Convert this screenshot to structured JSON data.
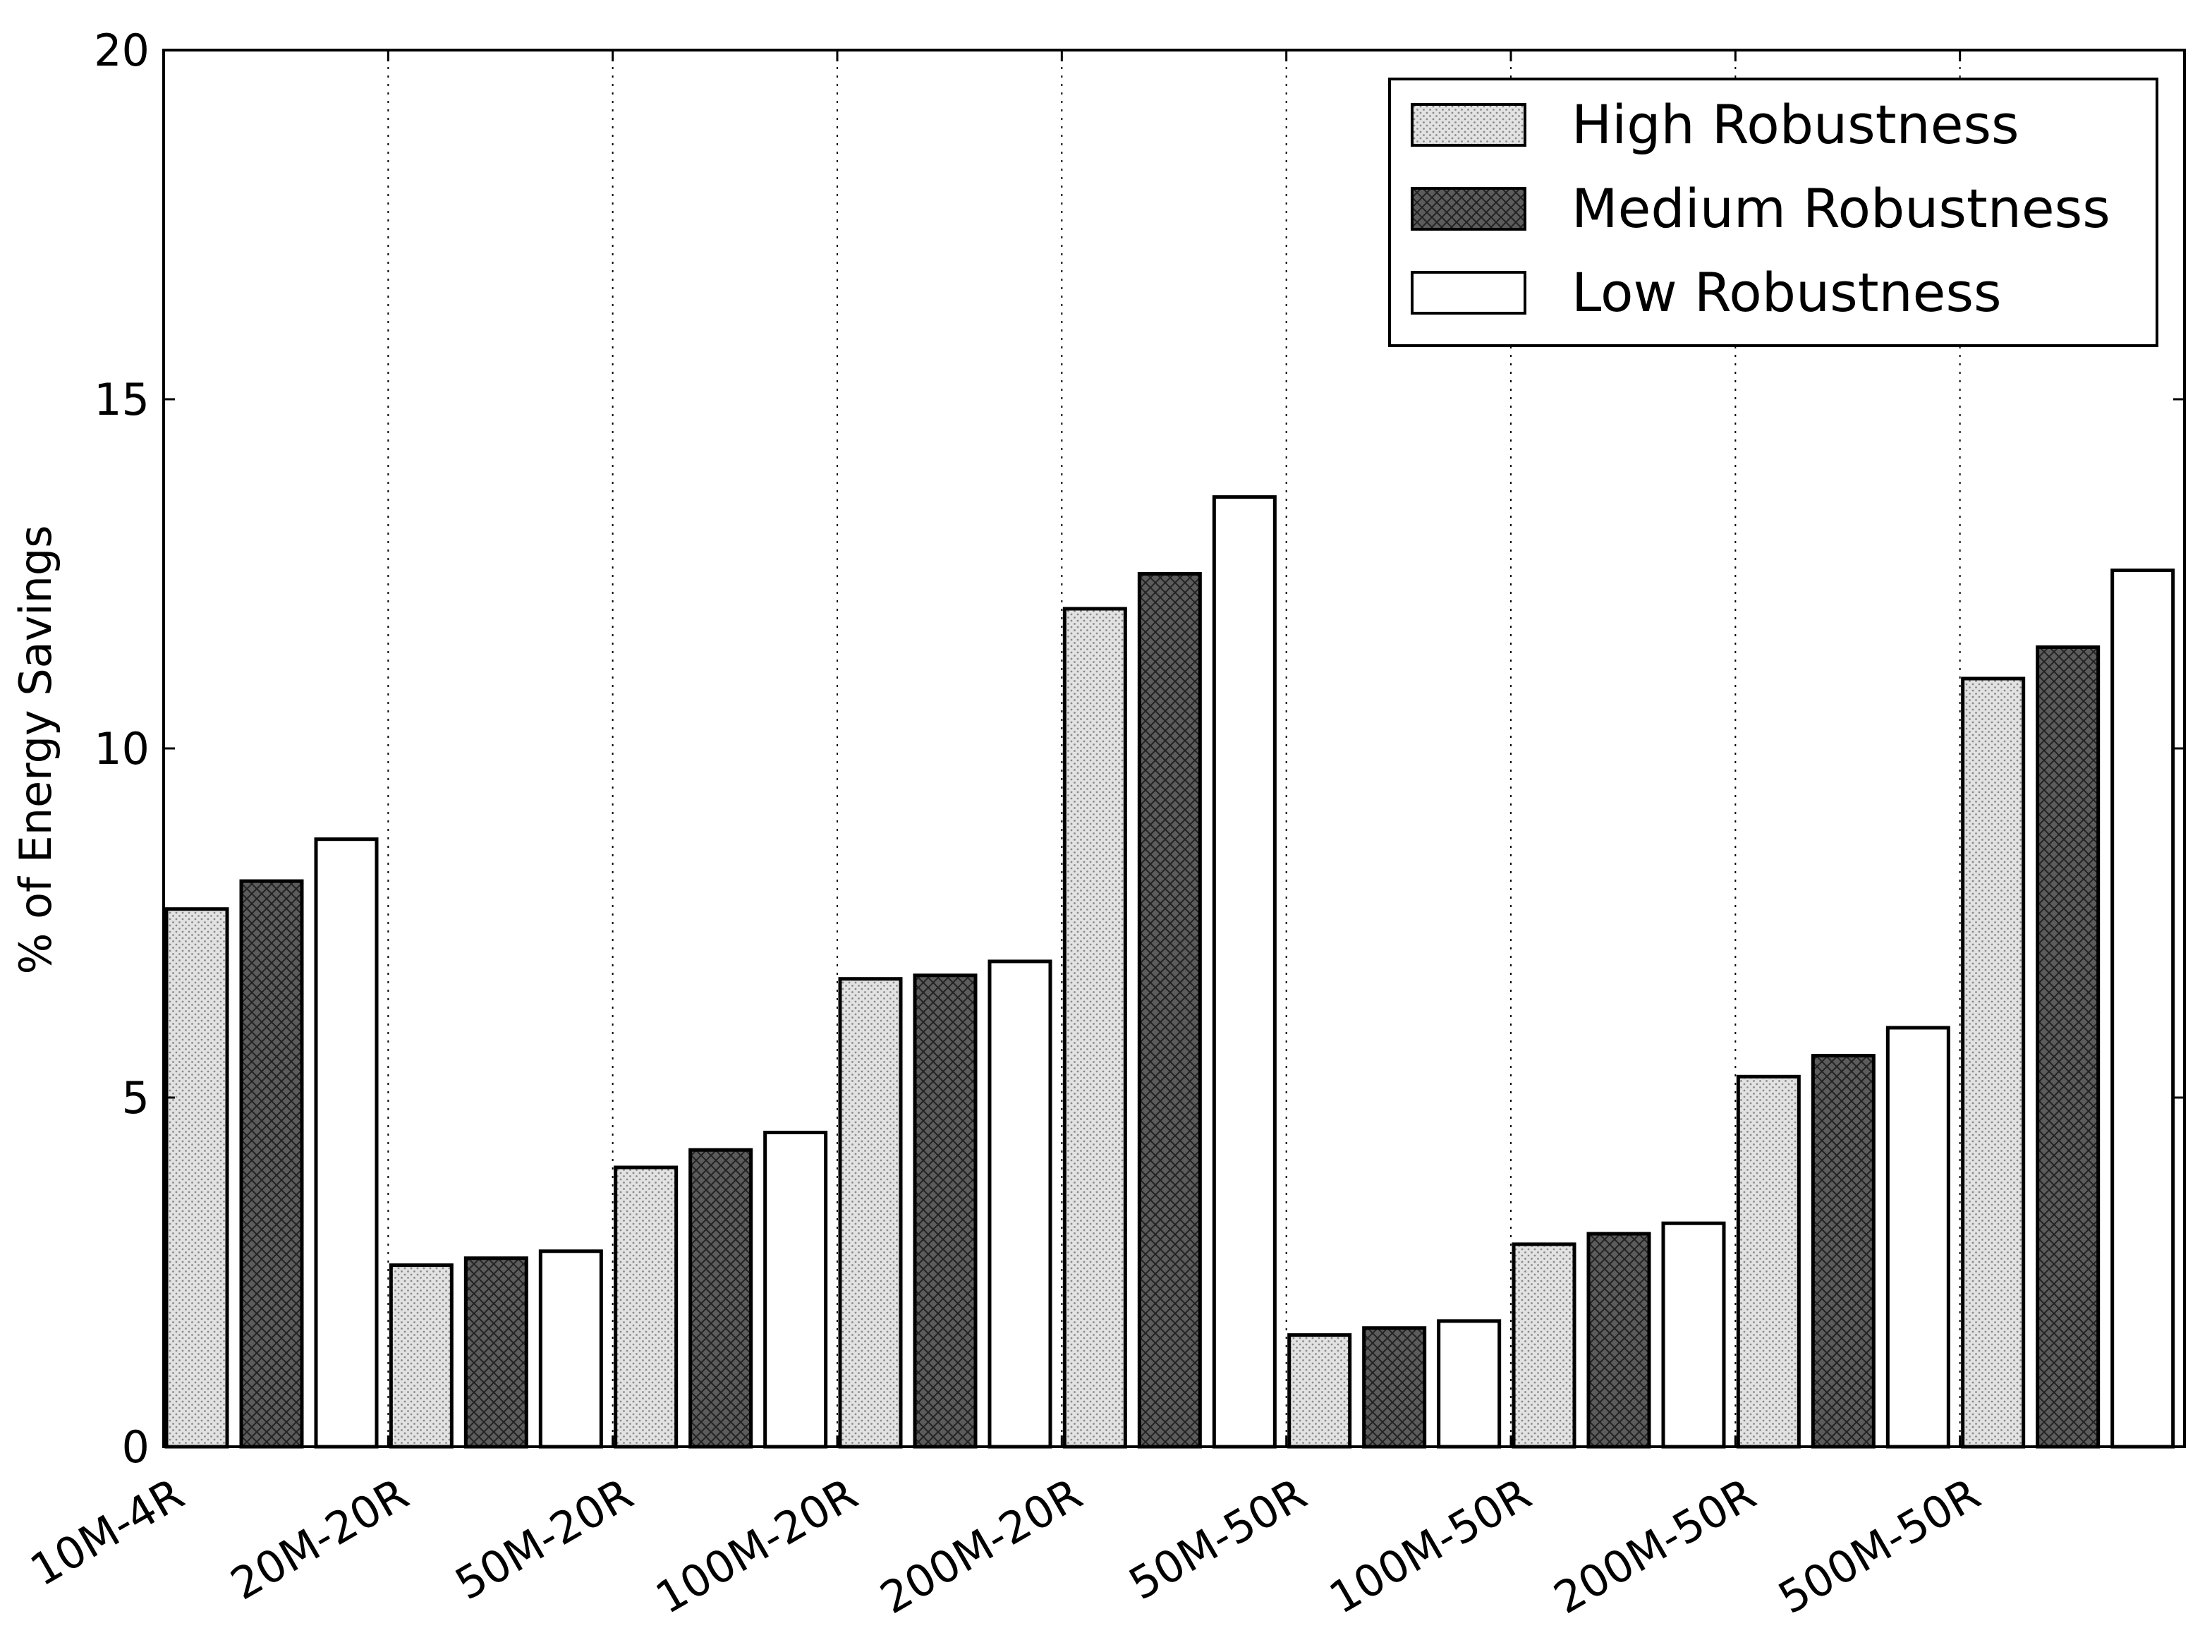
{
  "chart_data": {
    "type": "bar",
    "title": "",
    "xlabel": "",
    "ylabel": "% of Energy Savings",
    "ylim": [
      0,
      20
    ],
    "yticks": [
      0,
      5,
      10,
      15,
      20
    ],
    "grid": "vertical dotted lines at category boundaries",
    "legend_position": "top-right",
    "categories": [
      "10M-4R",
      "20M-20R",
      "50M-20R",
      "100M-20R",
      "200M-20R",
      "50M-50R",
      "100M-50R",
      "200M-50R",
      "500M-50R"
    ],
    "series": [
      {
        "name": "High Robustness",
        "values": [
          7.7,
          2.6,
          4.0,
          6.7,
          12.0,
          1.6,
          2.9,
          5.3,
          11.0
        ],
        "fill": "#e2e2e2",
        "pattern": "dots"
      },
      {
        "name": "Medium Robustness",
        "values": [
          8.1,
          2.7,
          4.25,
          6.75,
          12.5,
          1.7,
          3.05,
          5.6,
          11.45
        ],
        "fill": "#5c5c5c",
        "pattern": "crosshatch"
      },
      {
        "name": "Low Robustness",
        "values": [
          8.7,
          2.8,
          4.5,
          6.95,
          13.6,
          1.8,
          3.2,
          6.0,
          12.55
        ],
        "fill": "#ffffff",
        "pattern": "none"
      }
    ]
  }
}
